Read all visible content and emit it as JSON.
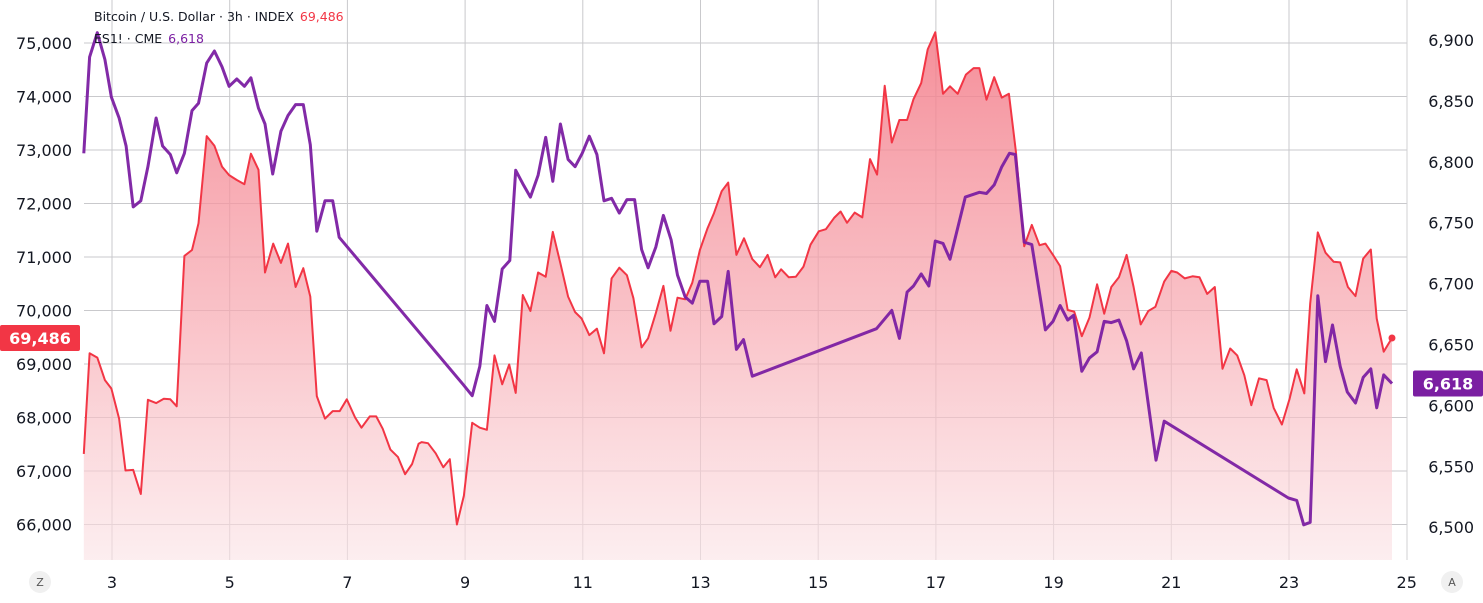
{
  "legend": {
    "series1_label": "Bitcoin / U.S. Dollar · 3h · INDEX",
    "series1_value": "69,486",
    "series2_label": "ES1! · CME",
    "series2_value": "6,618"
  },
  "badges": {
    "left": "69,486",
    "right": "6,618"
  },
  "corner_buttons": {
    "left": "Z",
    "right": "A"
  },
  "colors": {
    "btc": "#f23645",
    "es": "#7b1fa2",
    "grid": "#c9c9cc"
  },
  "chart_data": {
    "type": "line",
    "grid": true,
    "x_ticks": [
      "3",
      "5",
      "7",
      "9",
      "11",
      "13",
      "15",
      "17",
      "19",
      "21",
      "23",
      "25"
    ],
    "x_tick_values": [
      3,
      5,
      7,
      9,
      11,
      13,
      15,
      17,
      19,
      21,
      23,
      25
    ],
    "left_axis": {
      "ticks": [
        "75,000",
        "74,000",
        "73,000",
        "72,000",
        "71,000",
        "70,000",
        "69,000",
        "68,000",
        "67,000",
        "66,000"
      ],
      "tick_values": [
        75000,
        74000,
        73000,
        72000,
        71000,
        70000,
        69000,
        68000,
        67000,
        66000
      ]
    },
    "right_axis": {
      "ticks": [
        "6,900",
        "6,850",
        "6,800",
        "6,750",
        "6,700",
        "6,650",
        "6,600",
        "6,550",
        "6,500"
      ],
      "tick_values": [
        6900,
        6850,
        6800,
        6750,
        6700,
        6650,
        6600,
        6550,
        6500
      ]
    },
    "series": [
      {
        "name": "Bitcoin / U.S. Dollar · 3h · INDEX",
        "axis": "left",
        "style": "area",
        "x": [
          2.52,
          2.62,
          2.75,
          2.88,
          2.99,
          3.12,
          3.23,
          3.36,
          3.49,
          3.61,
          3.75,
          3.88,
          3.99,
          4.1,
          4.23,
          4.36,
          4.47,
          4.61,
          4.74,
          4.87,
          4.99,
          5.12,
          5.25,
          5.36,
          5.49,
          5.6,
          5.74,
          5.87,
          5.99,
          6.12,
          6.25,
          6.37,
          6.48,
          6.62,
          6.75,
          6.87,
          6.99,
          7.13,
          7.24,
          7.38,
          7.49,
          7.6,
          7.73,
          7.86,
          7.98,
          8.1,
          8.21,
          8.26,
          8.37,
          8.5,
          8.63,
          8.74,
          8.86,
          8.98,
          9.12,
          9.25,
          9.37,
          9.5,
          9.63,
          9.75,
          9.86,
          9.98,
          10.11,
          10.24,
          10.37,
          10.49,
          10.62,
          10.75,
          10.87,
          10.98,
          11.11,
          11.24,
          11.36,
          11.49,
          11.62,
          11.75,
          11.86,
          12.0,
          12.11,
          12.24,
          12.37,
          12.49,
          12.61,
          12.74,
          12.86,
          12.99,
          13.12,
          13.23,
          13.36,
          13.47,
          13.61,
          13.74,
          13.88,
          14.01,
          14.14,
          14.27,
          14.37,
          14.5,
          14.62,
          14.75,
          14.87,
          15.01,
          15.13,
          15.27,
          15.38,
          15.49,
          15.62,
          15.75,
          15.88,
          16.0,
          16.13,
          16.25,
          16.38,
          16.51,
          16.62,
          16.75,
          16.86,
          16.99,
          17.12,
          17.24,
          17.37,
          17.51,
          17.64,
          17.74,
          17.86,
          17.99,
          18.12,
          18.24,
          18.36,
          18.5,
          18.63,
          18.76,
          18.86,
          18.99,
          19.11,
          19.24,
          19.35,
          19.48,
          19.61,
          19.74,
          19.86,
          19.98,
          20.11,
          20.24,
          20.36,
          20.48,
          20.61,
          20.73,
          20.88,
          21.0,
          21.1,
          21.23,
          21.36,
          21.48,
          21.61,
          21.74,
          21.87,
          22.0,
          22.12,
          22.24,
          22.36,
          22.49,
          22.62,
          22.74,
          22.88,
          23.01,
          23.13,
          23.26,
          23.36,
          23.49,
          23.62,
          23.76,
          23.87,
          24.0,
          24.13,
          24.26,
          24.39,
          24.49,
          24.61,
          24.75
        ],
        "y": [
          67320,
          69200,
          69120,
          68700,
          68540,
          67980,
          67010,
          67020,
          66570,
          68330,
          68270,
          68350,
          68340,
          68210,
          71020,
          71130,
          71630,
          73260,
          73080,
          72690,
          72530,
          72440,
          72360,
          72930,
          72630,
          70710,
          71250,
          70890,
          71250,
          70440,
          70790,
          70260,
          68400,
          67980,
          68120,
          68120,
          68340,
          68000,
          67810,
          68020,
          68020,
          67790,
          67400,
          67260,
          66940,
          67130,
          67510,
          67540,
          67520,
          67330,
          67070,
          67220,
          66000,
          66540,
          67900,
          67810,
          67770,
          69160,
          68620,
          68990,
          68460,
          70290,
          69990,
          70710,
          70630,
          71470,
          70880,
          70260,
          69970,
          69850,
          69540,
          69660,
          69200,
          70600,
          70800,
          70660,
          70230,
          69310,
          69480,
          69950,
          70460,
          69620,
          70240,
          70210,
          70520,
          71130,
          71540,
          71820,
          72230,
          72390,
          71040,
          71350,
          70960,
          70810,
          71040,
          70620,
          70770,
          70620,
          70630,
          70820,
          71230,
          71480,
          71520,
          71730,
          71850,
          71640,
          71830,
          71740,
          72830,
          72540,
          74200,
          73140,
          73560,
          73560,
          73950,
          74250,
          74880,
          75200,
          74050,
          74190,
          74050,
          74410,
          74530,
          74530,
          73940,
          74360,
          73980,
          74050,
          72970,
          71200,
          71600,
          71220,
          71250,
          71040,
          70830,
          70010,
          69980,
          69520,
          69870,
          70490,
          69940,
          70440,
          70620,
          71040,
          70440,
          69740,
          69990,
          70070,
          70540,
          70740,
          70710,
          70600,
          70640,
          70620,
          70310,
          70440,
          68910,
          69290,
          69160,
          68790,
          68230,
          68730,
          68700,
          68180,
          67870,
          68350,
          68900,
          68450,
          70130,
          71460,
          71080,
          70910,
          70900,
          70440,
          70270,
          70970,
          71140,
          69850,
          69230,
          69486
        ]
      },
      {
        "name": "ES1! · CME",
        "axis": "right",
        "style": "line",
        "x": [
          2.52,
          2.62,
          2.75,
          2.88,
          2.99,
          3.12,
          3.24,
          3.36,
          3.49,
          3.61,
          3.75,
          3.86,
          3.99,
          4.1,
          4.23,
          4.36,
          4.47,
          4.61,
          4.74,
          4.87,
          4.99,
          5.12,
          5.25,
          5.36,
          5.49,
          5.6,
          5.73,
          5.87,
          5.99,
          6.12,
          6.25,
          6.37,
          6.48,
          6.62,
          6.75,
          6.86,
          8.97,
          9.12,
          9.25,
          9.37,
          9.5,
          9.63,
          9.76,
          9.86,
          9.98,
          10.11,
          10.24,
          10.37,
          10.49,
          10.62,
          10.75,
          10.87,
          10.99,
          11.11,
          11.24,
          11.36,
          11.49,
          11.62,
          11.75,
          11.88,
          12.0,
          12.11,
          12.24,
          12.37,
          12.5,
          12.61,
          12.74,
          12.86,
          12.99,
          13.12,
          13.23,
          13.36,
          13.47,
          13.61,
          13.73,
          13.88,
          15.99,
          16.25,
          16.38,
          16.51,
          16.62,
          16.75,
          16.88,
          16.99,
          17.12,
          17.24,
          17.5,
          17.74,
          17.86,
          17.99,
          18.12,
          18.25,
          18.35,
          18.5,
          18.63,
          18.86,
          18.99,
          19.11,
          19.24,
          19.34,
          19.48,
          19.61,
          19.74,
          19.86,
          19.98,
          20.11,
          20.24,
          20.36,
          20.49,
          20.6,
          20.74,
          20.88,
          22.99,
          23.13,
          23.25,
          23.36,
          23.49,
          23.62,
          23.74,
          23.87,
          23.99,
          24.13,
          24.26,
          24.39,
          24.49,
          24.61,
          24.75
        ],
        "y": [
          6807,
          6886,
          6906,
          6884,
          6853,
          6836,
          6813,
          6763,
          6768,
          6796,
          6836,
          6813,
          6806,
          6791,
          6807,
          6842,
          6848,
          6881,
          6891,
          6878,
          6862,
          6868,
          6862,
          6869,
          6844,
          6831,
          6790,
          6825,
          6838,
          6847,
          6847,
          6814,
          6743,
          6768,
          6768,
          6738,
          6617,
          6608,
          6632,
          6682,
          6669,
          6712,
          6719,
          6793,
          6782,
          6771,
          6789,
          6820,
          6784,
          6831,
          6802,
          6796,
          6807,
          6821,
          6806,
          6768,
          6770,
          6758,
          6769,
          6769,
          6728,
          6713,
          6730,
          6756,
          6736,
          6707,
          6689,
          6684,
          6702,
          6702,
          6667,
          6673,
          6710,
          6646,
          6654,
          6624,
          6663,
          6678,
          6655,
          6693,
          6698,
          6708,
          6698,
          6735,
          6733,
          6720,
          6771,
          6775,
          6774,
          6781,
          6796,
          6807,
          6806,
          6734,
          6732,
          6662,
          6669,
          6682,
          6670,
          6674,
          6628,
          6639,
          6644,
          6669,
          6668,
          6670,
          6653,
          6630,
          6643,
          6604,
          6555,
          6587,
          6524,
          6522,
          6502,
          6504,
          6690,
          6636,
          6666,
          6632,
          6611,
          6602,
          6623,
          6630,
          6598,
          6625,
          6618
        ]
      }
    ]
  }
}
